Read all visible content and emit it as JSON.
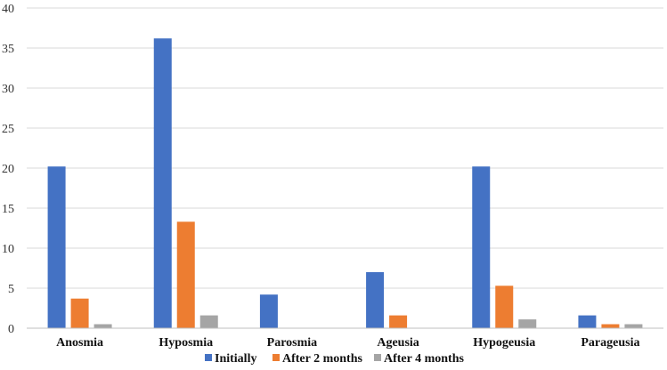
{
  "chart_data": {
    "type": "bar",
    "title": "",
    "xlabel": "",
    "ylabel": "",
    "ylim": [
      0,
      40
    ],
    "y_ticks": [
      0,
      5,
      10,
      15,
      20,
      25,
      30,
      35,
      40
    ],
    "grid": true,
    "legend_position": "bottom",
    "categories": [
      "Anosmia",
      "Hyposmia",
      "Parosmia",
      "Ageusia",
      "Hypogeusia",
      "Parageusia"
    ],
    "series": [
      {
        "name": "Initially",
        "color": "#4472C4",
        "values": [
          20.2,
          36.2,
          4.2,
          7.0,
          20.2,
          1.6
        ]
      },
      {
        "name": "After 2 months",
        "color": "#ED7D31",
        "values": [
          3.7,
          13.3,
          0,
          1.6,
          5.3,
          0.5
        ]
      },
      {
        "name": "After 4 months",
        "color": "#A5A5A5",
        "values": [
          0.5,
          1.6,
          0,
          0,
          1.1,
          0.5
        ]
      }
    ]
  }
}
